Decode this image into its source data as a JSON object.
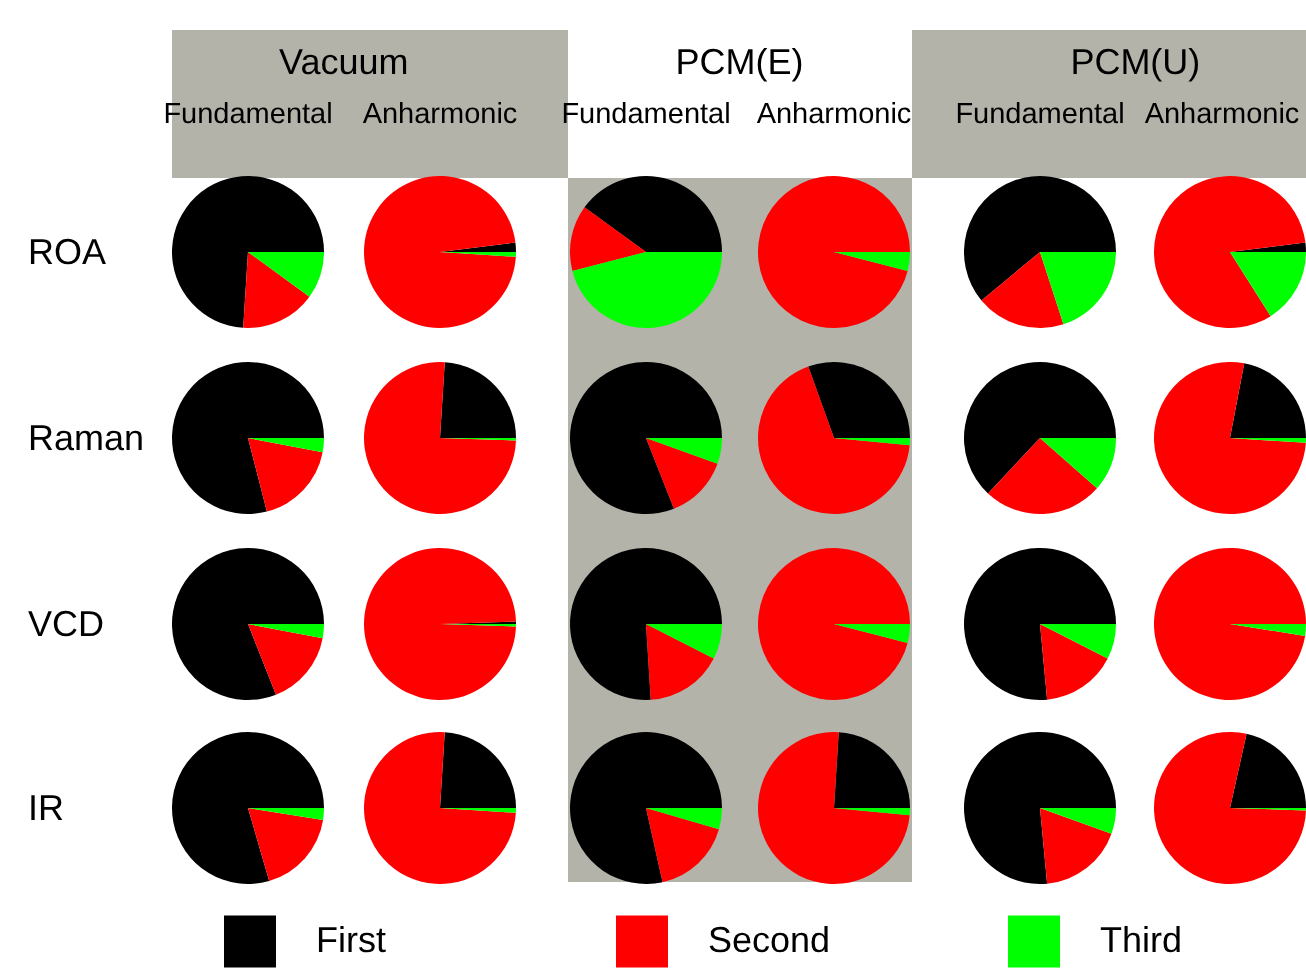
{
  "chart_data": [
    {
      "type": "other",
      "annotations": [
        "Vacuum",
        "PCM(E)",
        "PCM(U)"
      ]
    },
    {
      "type": "pie",
      "title": "Fundamental",
      "ylabel": "ROA",
      "categories": [
        null,
        null,
        null
      ],
      "values": [
        74,
        16,
        10
      ],
      "colors": [
        "#000000",
        "#ff0000",
        "#00ff00"
      ]
    },
    {
      "type": "pie",
      "title": "Anharmonic",
      "categories": [
        null,
        null,
        null
      ],
      "values": [
        2,
        97,
        1
      ],
      "colors": [
        "#000000",
        "#ff0000",
        "#00ff00"
      ]
    },
    {
      "type": "pie",
      "title": "Fundamental",
      "categories": [
        null,
        null,
        null
      ],
      "values": [
        40,
        14,
        46
      ],
      "colors": [
        "#000000",
        "#ff0000",
        "#00ff00"
      ]
    },
    {
      "type": "pie",
      "title": "Anharmonic",
      "categories": [
        null,
        null,
        null
      ],
      "values": [
        0,
        96,
        4
      ],
      "colors": [
        "#000000",
        "#ff0000",
        "#00ff00"
      ]
    },
    {
      "type": "pie",
      "title": "Fundamental",
      "categories": [
        null,
        null,
        null
      ],
      "values": [
        61,
        19,
        20
      ],
      "colors": [
        "#000000",
        "#ff0000",
        "#00ff00"
      ]
    },
    {
      "type": "pie",
      "title": "Anharmonic",
      "categories": [
        null,
        null,
        null
      ],
      "values": [
        2,
        82,
        16
      ],
      "colors": [
        "#000000",
        "#ff0000",
        "#00ff00"
      ]
    },
    {
      "type": "pie",
      "ylabel": "Raman",
      "categories": [
        null,
        null,
        null
      ],
      "values": [
        79,
        18,
        3
      ],
      "colors": [
        "#000000",
        "#ff0000",
        "#00ff00"
      ]
    },
    {
      "type": "pie",
      "categories": [
        null,
        null,
        null
      ],
      "values": [
        24,
        75.5,
        0.5
      ],
      "colors": [
        "#000000",
        "#ff0000",
        "#00ff00"
      ]
    },
    {
      "type": "pie",
      "categories": [
        null,
        null,
        null
      ],
      "values": [
        81,
        13.5,
        5.5
      ],
      "colors": [
        "#000000",
        "#ff0000",
        "#00ff00"
      ]
    },
    {
      "type": "pie",
      "categories": [
        null,
        null,
        null
      ],
      "values": [
        30.5,
        68,
        1.5
      ],
      "colors": [
        "#000000",
        "#ff0000",
        "#00ff00"
      ]
    },
    {
      "type": "pie",
      "categories": [
        null,
        null,
        null
      ],
      "values": [
        63,
        25.5,
        11.5
      ],
      "colors": [
        "#000000",
        "#ff0000",
        "#00ff00"
      ]
    },
    {
      "type": "pie",
      "categories": [
        null,
        null,
        null
      ],
      "values": [
        22,
        77,
        1
      ],
      "colors": [
        "#000000",
        "#ff0000",
        "#00ff00"
      ]
    },
    {
      "type": "pie",
      "ylabel": "VCD",
      "categories": [
        null,
        null,
        null
      ],
      "values": [
        81,
        16,
        3
      ],
      "colors": [
        "#000000",
        "#ff0000",
        "#00ff00"
      ]
    },
    {
      "type": "pie",
      "categories": [
        null,
        null,
        null
      ],
      "values": [
        0.5,
        99,
        0.5
      ],
      "colors": [
        "#000000",
        "#ff0000",
        "#00ff00"
      ]
    },
    {
      "type": "pie",
      "categories": [
        null,
        null,
        null
      ],
      "values": [
        76,
        16.5,
        7.5
      ],
      "colors": [
        "#000000",
        "#ff0000",
        "#00ff00"
      ]
    },
    {
      "type": "pie",
      "categories": [
        null,
        null,
        null
      ],
      "values": [
        0,
        96,
        4
      ],
      "colors": [
        "#000000",
        "#ff0000",
        "#00ff00"
      ]
    },
    {
      "type": "pie",
      "categories": [
        null,
        null,
        null
      ],
      "values": [
        76.5,
        16,
        7.5
      ],
      "colors": [
        "#000000",
        "#ff0000",
        "#00ff00"
      ]
    },
    {
      "type": "pie",
      "categories": [
        null,
        null,
        null
      ],
      "values": [
        0,
        97.5,
        2.5
      ],
      "colors": [
        "#000000",
        "#ff0000",
        "#00ff00"
      ]
    },
    {
      "type": "pie",
      "ylabel": "IR",
      "categories": [
        null,
        null,
        null
      ],
      "values": [
        79.5,
        18,
        2.5
      ],
      "colors": [
        "#000000",
        "#ff0000",
        "#00ff00"
      ]
    },
    {
      "type": "pie",
      "categories": [
        null,
        null,
        null
      ],
      "values": [
        24,
        75,
        1
      ],
      "colors": [
        "#000000",
        "#ff0000",
        "#00ff00"
      ]
    },
    {
      "type": "pie",
      "categories": [
        null,
        null,
        null
      ],
      "values": [
        78.5,
        17,
        4.5
      ],
      "colors": [
        "#000000",
        "#ff0000",
        "#00ff00"
      ]
    },
    {
      "type": "pie",
      "categories": [
        null,
        null,
        null
      ],
      "values": [
        24,
        74.5,
        1.5
      ],
      "colors": [
        "#000000",
        "#ff0000",
        "#00ff00"
      ]
    },
    {
      "type": "pie",
      "categories": [
        null,
        null,
        null
      ],
      "values": [
        76.5,
        18,
        5.5
      ],
      "colors": [
        "#000000",
        "#ff0000",
        "#00ff00"
      ]
    },
    {
      "type": "pie",
      "legend": "bottom",
      "categories": [
        "First",
        "Second",
        "Third"
      ],
      "values": [
        21.5,
        78,
        0.5
      ],
      "colors": [
        "#000000",
        "#ff0000",
        "#00ff00"
      ]
    }
  ]
}
